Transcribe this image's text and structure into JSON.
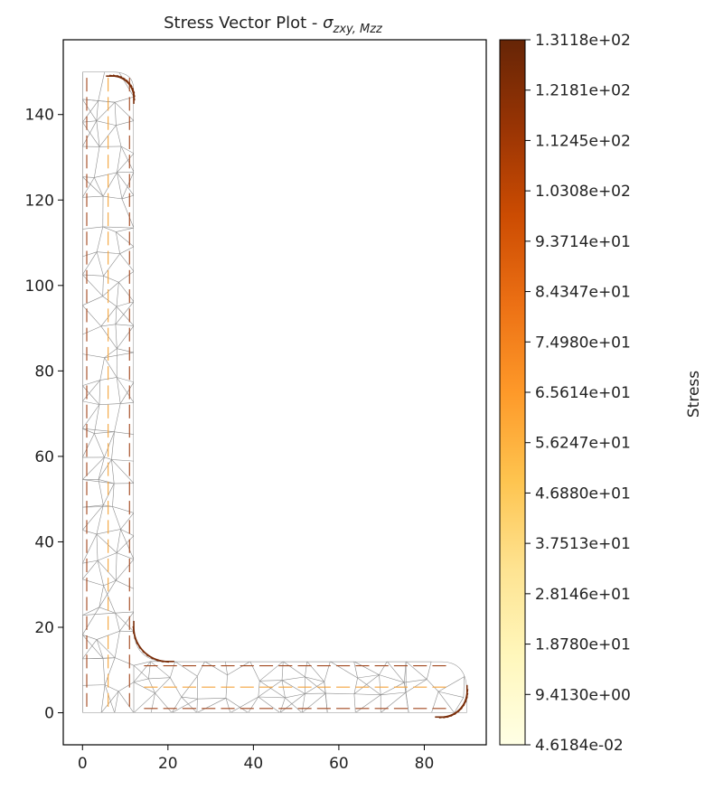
{
  "chart_data": {
    "type": "vector-mesh",
    "title": "Stress Vector Plot - ",
    "title_symbol": "σ",
    "title_subscript": "zxy, Mzz",
    "x_ticks": [
      0,
      20,
      40,
      60,
      80
    ],
    "y_ticks": [
      0,
      20,
      40,
      60,
      80,
      100,
      120,
      140
    ],
    "xlim": [
      -4.5,
      94.5
    ],
    "ylim": [
      -7.5,
      157.5
    ],
    "geometry": {
      "outline": [
        [
          0,
          0
        ],
        [
          90,
          0
        ],
        [
          90,
          5
        ],
        [
          86,
          12
        ],
        [
          12,
          12
        ],
        [
          12,
          100
        ],
        [
          12,
          146
        ],
        [
          8,
          150
        ],
        [
          0,
          150
        ]
      ],
      "root_fillet": {
        "center": [
          20,
          20
        ],
        "radius": 8
      },
      "vertical_leg": {
        "x_range": [
          0,
          12
        ],
        "y_range": [
          0,
          150
        ]
      },
      "horizontal_leg": {
        "x_range": [
          0,
          90
        ],
        "y_range": [
          0,
          12
        ]
      }
    },
    "colorbar": {
      "label": "Stress",
      "colormap": "YlOrBr",
      "min": 0.046184,
      "max": 131.18,
      "colors": [
        "#ffffe5",
        "#fff7bc",
        "#fee391",
        "#fec44f",
        "#fe9929",
        "#ec7014",
        "#cc4c02",
        "#993404",
        "#662506"
      ],
      "tick_labels": [
        "4.6184e-02",
        "9.4130e+00",
        "1.8780e+01",
        "2.8146e+01",
        "3.7513e+01",
        "4.6880e+01",
        "5.6247e+01",
        "6.5614e+01",
        "7.4980e+01",
        "8.4347e+01",
        "9.3714e+01",
        "1.0308e+02",
        "1.1245e+02",
        "1.2181e+02",
        "1.3118e+02"
      ]
    },
    "colors": {
      "mesh": "#8c8c8c",
      "vectors": "#f4a23a",
      "edge_vectors": "#a0441a"
    }
  }
}
